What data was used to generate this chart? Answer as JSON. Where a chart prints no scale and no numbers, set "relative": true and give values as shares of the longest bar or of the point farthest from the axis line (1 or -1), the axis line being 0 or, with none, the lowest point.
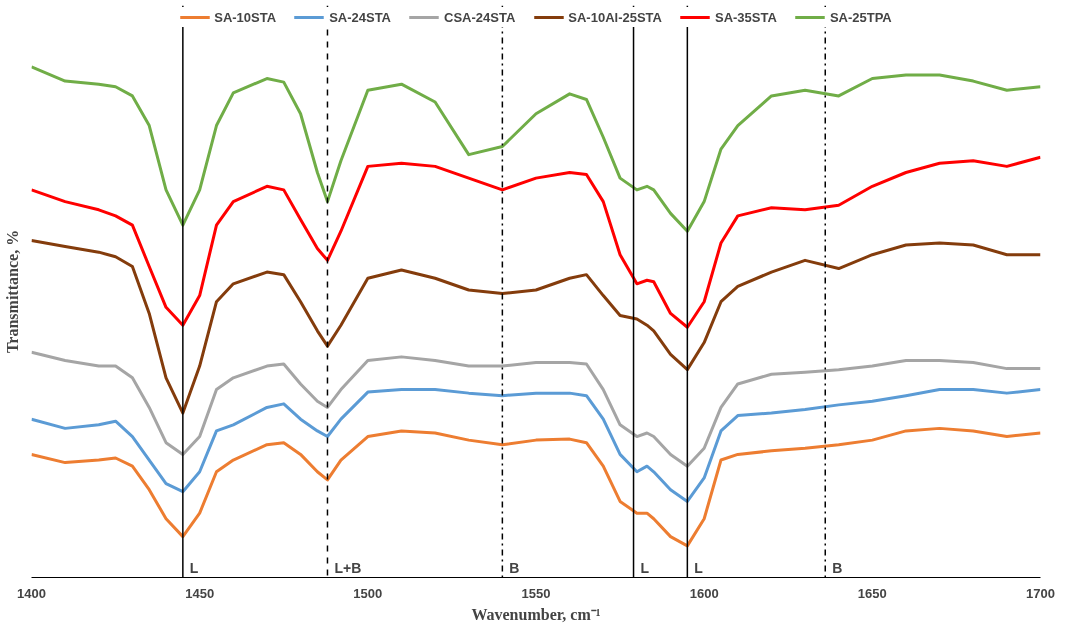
{
  "chart_data": {
    "type": "line",
    "relative": true,
    "xlabel": "Wavenumber, cm⁻¹",
    "ylabel": "Transmittance, %",
    "x": [
      1400,
      1410,
      1420,
      1425,
      1430,
      1435,
      1440,
      1445,
      1450,
      1455,
      1460,
      1470,
      1475,
      1480,
      1485,
      1488,
      1492,
      1500,
      1510,
      1520,
      1530,
      1540,
      1550,
      1560,
      1565,
      1570,
      1575,
      1580,
      1583,
      1585,
      1590,
      1595,
      1600,
      1605,
      1610,
      1620,
      1630,
      1640,
      1650,
      1660,
      1670,
      1680,
      1690,
      1700
    ],
    "xlim": [
      1400,
      1700
    ],
    "xticks": [
      1400,
      1450,
      1500,
      1550,
      1600,
      1650,
      1700
    ],
    "tick_labels": "x",
    "grid": false,
    "legend": "top",
    "line_style": "solid",
    "series": [
      {
        "name": "SA-10STA",
        "color": "#ed7d31",
        "values": [
          0.241,
          0.225,
          0.23,
          0.234,
          0.218,
          0.172,
          0.115,
          0.08,
          0.126,
          0.207,
          0.23,
          0.26,
          0.264,
          0.241,
          0.207,
          0.191,
          0.23,
          0.276,
          0.287,
          0.283,
          0.269,
          0.26,
          0.269,
          0.271,
          0.264,
          0.218,
          0.149,
          0.126,
          0.126,
          0.115,
          0.08,
          0.062,
          0.115,
          0.23,
          0.241,
          0.248,
          0.253,
          0.26,
          0.269,
          0.287,
          0.292,
          0.287,
          0.276,
          0.283
        ]
      },
      {
        "name": "SA-24STA",
        "color": "#5b9bd5",
        "values": [
          0.31,
          0.292,
          0.299,
          0.306,
          0.276,
          0.23,
          0.184,
          0.168,
          0.207,
          0.287,
          0.299,
          0.333,
          0.34,
          0.31,
          0.287,
          0.276,
          0.31,
          0.363,
          0.368,
          0.368,
          0.361,
          0.356,
          0.361,
          0.361,
          0.356,
          0.31,
          0.241,
          0.207,
          0.218,
          0.207,
          0.172,
          0.149,
          0.195,
          0.287,
          0.317,
          0.322,
          0.329,
          0.338,
          0.345,
          0.356,
          0.368,
          0.368,
          0.361,
          0.368
        ]
      },
      {
        "name": "CSA-24STA",
        "color": "#a5a5a5",
        "values": [
          0.441,
          0.425,
          0.414,
          0.414,
          0.391,
          0.333,
          0.264,
          0.241,
          0.276,
          0.368,
          0.391,
          0.414,
          0.418,
          0.379,
          0.345,
          0.333,
          0.368,
          0.425,
          0.432,
          0.425,
          0.414,
          0.414,
          0.421,
          0.421,
          0.418,
          0.368,
          0.299,
          0.276,
          0.283,
          0.276,
          0.241,
          0.218,
          0.253,
          0.333,
          0.379,
          0.398,
          0.402,
          0.407,
          0.414,
          0.425,
          0.425,
          0.421,
          0.409,
          0.409
        ]
      },
      {
        "name": "SA-10Al-25STA",
        "color": "#843c0c",
        "values": [
          0.66,
          0.648,
          0.637,
          0.628,
          0.609,
          0.517,
          0.391,
          0.322,
          0.414,
          0.54,
          0.575,
          0.598,
          0.593,
          0.54,
          0.483,
          0.453,
          0.494,
          0.586,
          0.602,
          0.586,
          0.563,
          0.556,
          0.563,
          0.586,
          0.593,
          0.552,
          0.513,
          0.506,
          0.494,
          0.483,
          0.437,
          0.407,
          0.46,
          0.54,
          0.57,
          0.598,
          0.621,
          0.605,
          0.632,
          0.651,
          0.655,
          0.651,
          0.632,
          0.632
        ]
      },
      {
        "name": "SA-35STA",
        "color": "#ff0000",
        "values": [
          0.759,
          0.736,
          0.72,
          0.708,
          0.69,
          0.609,
          0.529,
          0.494,
          0.552,
          0.69,
          0.736,
          0.766,
          0.759,
          0.701,
          0.644,
          0.621,
          0.678,
          0.805,
          0.811,
          0.805,
          0.782,
          0.759,
          0.782,
          0.793,
          0.789,
          0.736,
          0.632,
          0.575,
          0.582,
          0.579,
          0.517,
          0.49,
          0.54,
          0.655,
          0.708,
          0.724,
          0.72,
          0.729,
          0.766,
          0.793,
          0.811,
          0.816,
          0.805,
          0.823
        ]
      },
      {
        "name": "SA-25TPA",
        "color": "#70ad47",
        "values": [
          1.0,
          0.972,
          0.966,
          0.961,
          0.943,
          0.885,
          0.759,
          0.69,
          0.759,
          0.885,
          0.949,
          0.977,
          0.97,
          0.908,
          0.793,
          0.736,
          0.816,
          0.954,
          0.966,
          0.931,
          0.828,
          0.844,
          0.908,
          0.947,
          0.936,
          0.862,
          0.782,
          0.759,
          0.766,
          0.759,
          0.713,
          0.678,
          0.736,
          0.839,
          0.885,
          0.943,
          0.954,
          0.943,
          0.977,
          0.984,
          0.984,
          0.972,
          0.954,
          0.961
        ]
      }
    ],
    "ref_lines": [
      {
        "axis": "x",
        "value": 1445,
        "label": "L",
        "color": "#000000",
        "line_style": "solid"
      },
      {
        "axis": "x",
        "value": 1488,
        "label": "L+B",
        "color": "#000000",
        "line_style": "dashed"
      },
      {
        "axis": "x",
        "value": 1540,
        "label": "B",
        "color": "#000000",
        "line_style": "dashdot"
      },
      {
        "axis": "x",
        "value": 1579,
        "label": "L",
        "color": "#000000",
        "line_style": "solid"
      },
      {
        "axis": "x",
        "value": 1595,
        "label": "L",
        "color": "#000000",
        "line_style": "solid"
      },
      {
        "axis": "x",
        "value": 1636,
        "label": "B",
        "color": "#000000",
        "line_style": "dashdot"
      }
    ]
  }
}
